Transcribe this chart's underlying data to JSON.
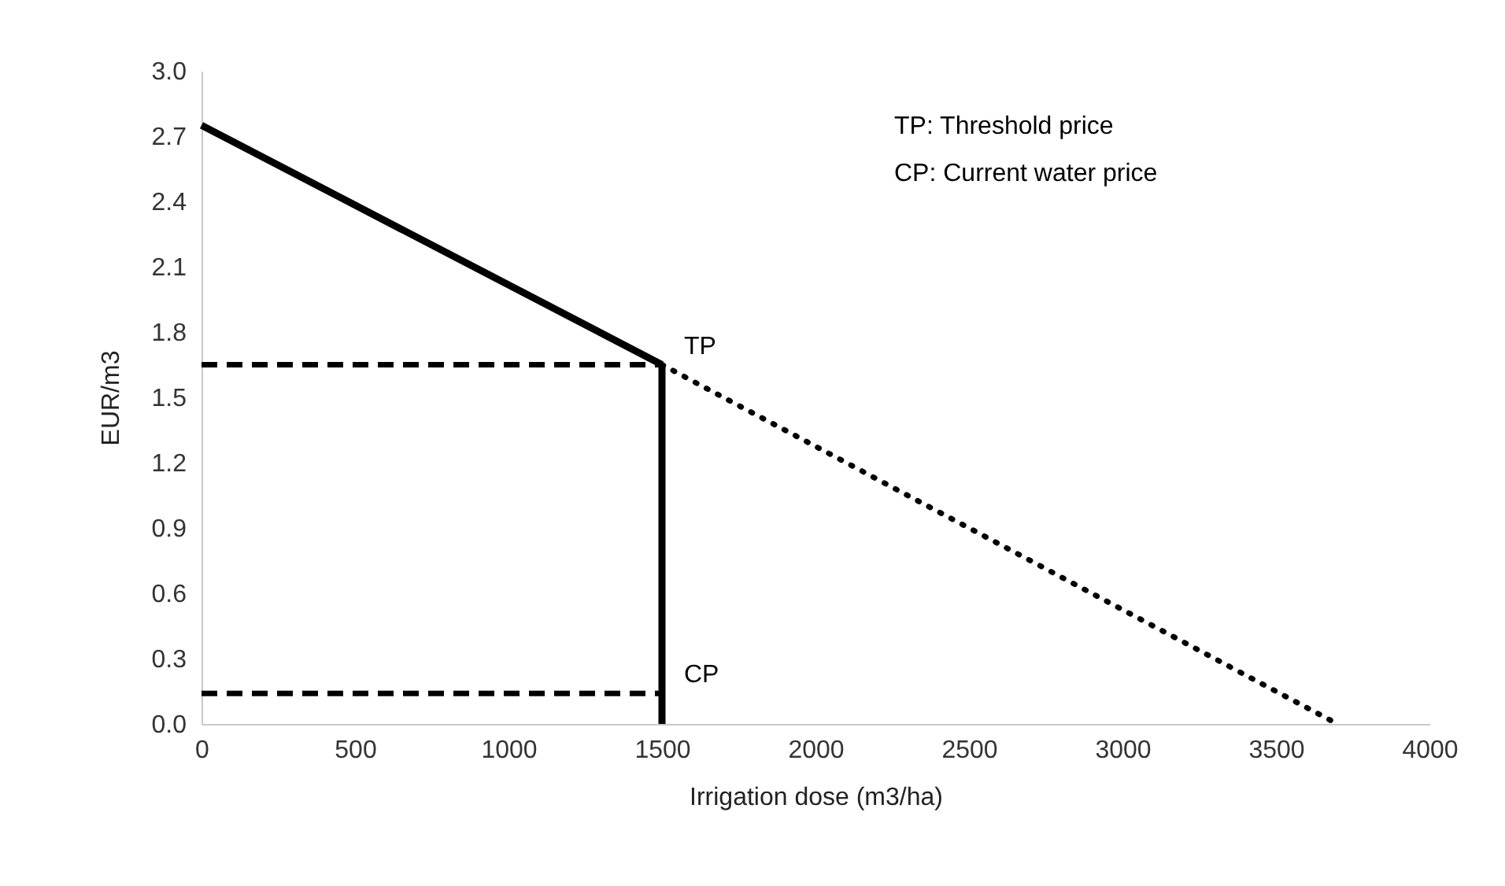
{
  "chart_data": {
    "type": "line",
    "xlabel": "Irrigation dose (m3/ha)",
    "ylabel": "EUR/m3",
    "xlim": [
      0,
      4000
    ],
    "xticks": [
      0,
      500,
      1000,
      1500,
      2000,
      2500,
      3000,
      3500,
      4000
    ],
    "ylim": [
      0,
      3.0
    ],
    "yticks": [
      {
        "value": 0,
        "label": "0.0"
      },
      0.3,
      0.6,
      0.9,
      1.2,
      1.5,
      1.8,
      2.1,
      2.4,
      2.7,
      {
        "value": 3.0,
        "label": "3.0"
      }
    ],
    "grid": false,
    "marker": "none",
    "series": [
      {
        "color": "#000000",
        "line_style": "solid",
        "x": [
          0,
          1500
        ],
        "values": [
          2.75,
          1.65
        ]
      },
      {
        "color": "#000000",
        "line_style": "solid",
        "x": [
          1500,
          1500
        ],
        "values": [
          1.65,
          0
        ]
      },
      {
        "color": "#000000",
        "line_style": "dotted",
        "x": [
          1500,
          3700
        ],
        "values": [
          1.65,
          0
        ]
      },
      {
        "color": "#000000",
        "line_style": "dashed",
        "x": [
          0,
          1500
        ],
        "values": [
          1.65,
          1.65
        ]
      },
      {
        "color": "#000000",
        "line_style": "dashed",
        "x": [
          0,
          1500
        ],
        "values": [
          0.14,
          0.14
        ]
      }
    ],
    "annotations": [
      {
        "text": "TP",
        "x": 1500,
        "y": 1.65
      },
      {
        "text": "CP",
        "x": 1500,
        "y": 0.14
      },
      "TP: Threshold price",
      "CP: Current water price"
    ]
  }
}
